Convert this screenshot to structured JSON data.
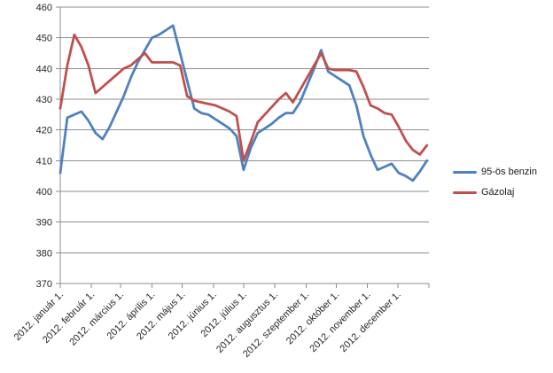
{
  "chart_data": {
    "type": "line",
    "title": "",
    "xlabel": "",
    "ylabel": "",
    "ylim": [
      370,
      460
    ],
    "yticks": [
      370,
      380,
      390,
      400,
      410,
      420,
      430,
      440,
      450,
      460
    ],
    "grid": true,
    "legend_position": "right",
    "background_color": "#ffffff",
    "grid_color": "#8c8c8c",
    "axis_color": "#8c8c8c",
    "text_color": "#262626",
    "x_total_days": 366,
    "x_tick_days": [
      0,
      31,
      60,
      91,
      121,
      152,
      182,
      213,
      244,
      274,
      305,
      335,
      366
    ],
    "x_axis_labels": [
      "2012. január 1.",
      "2012. február 1.",
      "2012. március 1.",
      "2012. április 1.",
      "2012. május 1.",
      "2012. június 1.",
      "2012. július 1.",
      "2012. augusztus 1.",
      "2012. szeptember 1.",
      "2012. október 1.",
      "2012. november 1.",
      "2012. december 1."
    ],
    "point_interval_days": 7,
    "point_dates": [
      "2012-01-01",
      "2012-01-08",
      "2012-01-15",
      "2012-01-22",
      "2012-01-29",
      "2012-02-05",
      "2012-02-12",
      "2012-02-19",
      "2012-02-26",
      "2012-03-04",
      "2012-03-11",
      "2012-03-18",
      "2012-03-25",
      "2012-04-01",
      "2012-04-08",
      "2012-04-15",
      "2012-04-22",
      "2012-04-29",
      "2012-05-06",
      "2012-05-13",
      "2012-05-20",
      "2012-05-27",
      "2012-06-03",
      "2012-06-10",
      "2012-06-17",
      "2012-06-24",
      "2012-07-01",
      "2012-07-08",
      "2012-07-15",
      "2012-07-22",
      "2012-07-29",
      "2012-08-05",
      "2012-08-12",
      "2012-08-19",
      "2012-08-26",
      "2012-09-02",
      "2012-09-09",
      "2012-09-16",
      "2012-09-23",
      "2012-09-30",
      "2012-10-07",
      "2012-10-14",
      "2012-10-21",
      "2012-10-28",
      "2012-11-04",
      "2012-11-11",
      "2012-11-18",
      "2012-11-25",
      "2012-12-02",
      "2012-12-09",
      "2012-12-16",
      "2012-12-23",
      "2012-12-30"
    ],
    "series": [
      {
        "name": "95-ös benzin",
        "color": "#4F81BD",
        "values": [
          406,
          424,
          425,
          426,
          423,
          419,
          417,
          421,
          426,
          431,
          437,
          442,
          446,
          450,
          451,
          452.5,
          454,
          445,
          436,
          427,
          425.5,
          425,
          423.5,
          422,
          420.5,
          418,
          407,
          414,
          419,
          420.5,
          422,
          424,
          425.5,
          425.5,
          429,
          434.5,
          440,
          446,
          439,
          437.5,
          436,
          434.5,
          428,
          418,
          412,
          407,
          408,
          409,
          406,
          405,
          403.5,
          406.5,
          410
        ]
      },
      {
        "name": "Gázolaj",
        "color": "#C0504D",
        "values": [
          427,
          441,
          451,
          447,
          441,
          432,
          434,
          436,
          438,
          440,
          441,
          443,
          445,
          442,
          442,
          442,
          442,
          441,
          431,
          429.5,
          429,
          428.5,
          428,
          427,
          426,
          424.5,
          410,
          416,
          422.5,
          425,
          427.5,
          430,
          432,
          429,
          433,
          437,
          441,
          445,
          440,
          439.5,
          439.5,
          439.5,
          439,
          434,
          428,
          427,
          425.5,
          425,
          421,
          416.5,
          413.5,
          412,
          415
        ]
      }
    ]
  }
}
